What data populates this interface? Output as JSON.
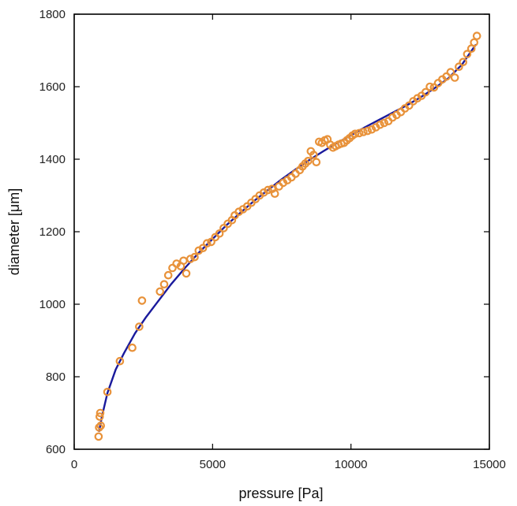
{
  "chart_data": {
    "type": "scatter",
    "xlabel": "pressure [Pa]",
    "ylabel": "diameter [μm]",
    "xlim": [
      0,
      15000
    ],
    "ylim": [
      600,
      1800
    ],
    "xticks": [
      0,
      5000,
      10000,
      15000
    ],
    "yticks": [
      600,
      800,
      1000,
      1200,
      1400,
      1600,
      1800
    ],
    "xtick_labels": [
      "0",
      "5000",
      "10000",
      "15000"
    ],
    "ytick_labels": [
      "600",
      "800",
      "1000",
      "1200",
      "1400",
      "1600",
      "1800"
    ],
    "grid": false,
    "legend": "none",
    "colors": {
      "points": "#E8923A",
      "fit": "#1A1A9C",
      "axis": "#000000"
    },
    "series": [
      {
        "kind": "points",
        "x": [
          880,
          900,
          920,
          940,
          960,
          1200,
          1650,
          2100,
          2350,
          2450,
          3100,
          3250,
          3400,
          3550,
          3700,
          3850,
          3950,
          4050,
          4200,
          4350,
          4500,
          4650,
          4800,
          4950,
          5100,
          5250,
          5400,
          5550,
          5700,
          5800,
          5950,
          6100,
          6250,
          6400,
          6550,
          6700,
          6850,
          7000,
          7150,
          7250,
          7400,
          7550,
          7700,
          7850,
          8000,
          8150,
          8250,
          8350,
          8450,
          8550,
          8650,
          8750,
          8850,
          8950,
          9050,
          9150,
          9250,
          9350,
          9450,
          9550,
          9650,
          9750,
          9850,
          9950,
          10050,
          10150,
          10300,
          10450,
          10600,
          10750,
          10900,
          11050,
          11200,
          11350,
          11500,
          11650,
          11800,
          11950,
          12100,
          12250,
          12400,
          12550,
          12700,
          12850,
          13000,
          13150,
          13300,
          13450,
          13600,
          13750,
          13900,
          14050,
          14200,
          14350,
          14450,
          14550
        ],
        "y": [
          635,
          660,
          690,
          700,
          665,
          758,
          843,
          880,
          938,
          1010,
          1035,
          1055,
          1080,
          1100,
          1112,
          1105,
          1120,
          1085,
          1125,
          1130,
          1148,
          1155,
          1168,
          1172,
          1185,
          1195,
          1210,
          1222,
          1232,
          1245,
          1255,
          1262,
          1270,
          1280,
          1290,
          1300,
          1308,
          1315,
          1318,
          1305,
          1325,
          1335,
          1342,
          1350,
          1360,
          1370,
          1380,
          1388,
          1395,
          1422,
          1412,
          1392,
          1448,
          1445,
          1452,
          1455,
          1440,
          1432,
          1436,
          1440,
          1443,
          1445,
          1452,
          1458,
          1465,
          1470,
          1472,
          1475,
          1478,
          1482,
          1488,
          1495,
          1500,
          1505,
          1515,
          1522,
          1530,
          1540,
          1548,
          1560,
          1568,
          1575,
          1585,
          1600,
          1598,
          1610,
          1620,
          1628,
          1640,
          1625,
          1655,
          1668,
          1690,
          1705,
          1722,
          1740
        ]
      },
      {
        "kind": "fit-line",
        "x": [
          900,
          1000,
          1200,
          1500,
          1800,
          2200,
          2600,
          3000,
          3500,
          4000,
          4500,
          5000,
          5500,
          6000,
          6500,
          7000,
          7500,
          8000,
          8500,
          9000,
          9500,
          10000,
          10500,
          11000,
          11500,
          12000,
          12500,
          13000,
          13500,
          14000,
          14500
        ],
        "y": [
          650,
          690,
          755,
          820,
          865,
          920,
          965,
          1005,
          1055,
          1100,
          1142,
          1180,
          1218,
          1252,
          1285,
          1315,
          1345,
          1372,
          1398,
          1422,
          1445,
          1466,
          1488,
          1508,
          1528,
          1548,
          1570,
          1595,
          1622,
          1660,
          1715
        ]
      }
    ]
  }
}
